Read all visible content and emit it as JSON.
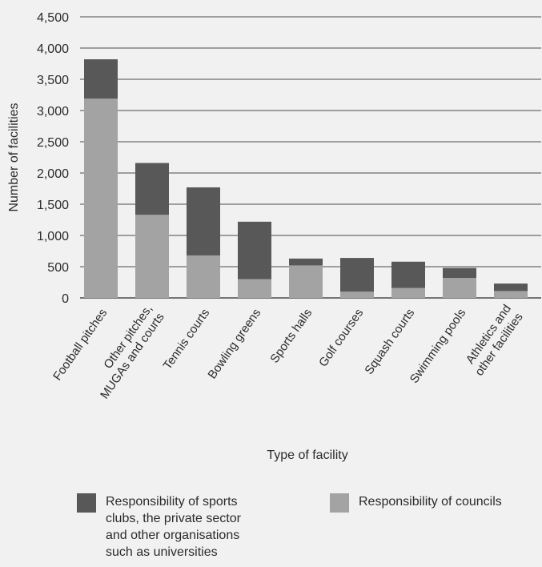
{
  "chart_data": {
    "type": "bar",
    "stacked": true,
    "xlabel": "Type of facility",
    "ylabel": "Number of facilities",
    "ylim": [
      0,
      4500
    ],
    "yticks": [
      0,
      500,
      1000,
      1500,
      2000,
      2500,
      3000,
      3500,
      4000,
      4500
    ],
    "ytick_labels": [
      "0",
      "500",
      "1,000",
      "1,500",
      "2,000",
      "2,500",
      "3,000",
      "3,500",
      "4,000",
      "4,500"
    ],
    "grid": "horizontal",
    "categories": [
      [
        "Football pitches"
      ],
      [
        "Other pitches,",
        "MUGAs and courts"
      ],
      [
        "Tennis courts"
      ],
      [
        "Bowling greens"
      ],
      [
        "Sports halls"
      ],
      [
        "Golf courses"
      ],
      [
        "Squash courts"
      ],
      [
        "Swimming pools"
      ],
      [
        "Athletics and",
        "other facilities"
      ]
    ],
    "series": [
      {
        "name": "Responsibility of councils",
        "color": "#a3a3a3",
        "values": [
          3190,
          1330,
          680,
          300,
          520,
          100,
          160,
          320,
          110
        ]
      },
      {
        "name": "Responsibility of sports clubs, the private sector and other organisations such as universities",
        "color": "#585858",
        "values": [
          630,
          830,
          1090,
          920,
          110,
          540,
          420,
          160,
          120
        ]
      }
    ],
    "legend": [
      {
        "color": "#585858",
        "lines": [
          "Responsibility of sports",
          "clubs, the private sector",
          "and other organisations",
          "such as universities"
        ]
      },
      {
        "color": "#a3a3a3",
        "lines": [
          "Responsibility of councils"
        ]
      }
    ],
    "legend_position": "bottom"
  }
}
